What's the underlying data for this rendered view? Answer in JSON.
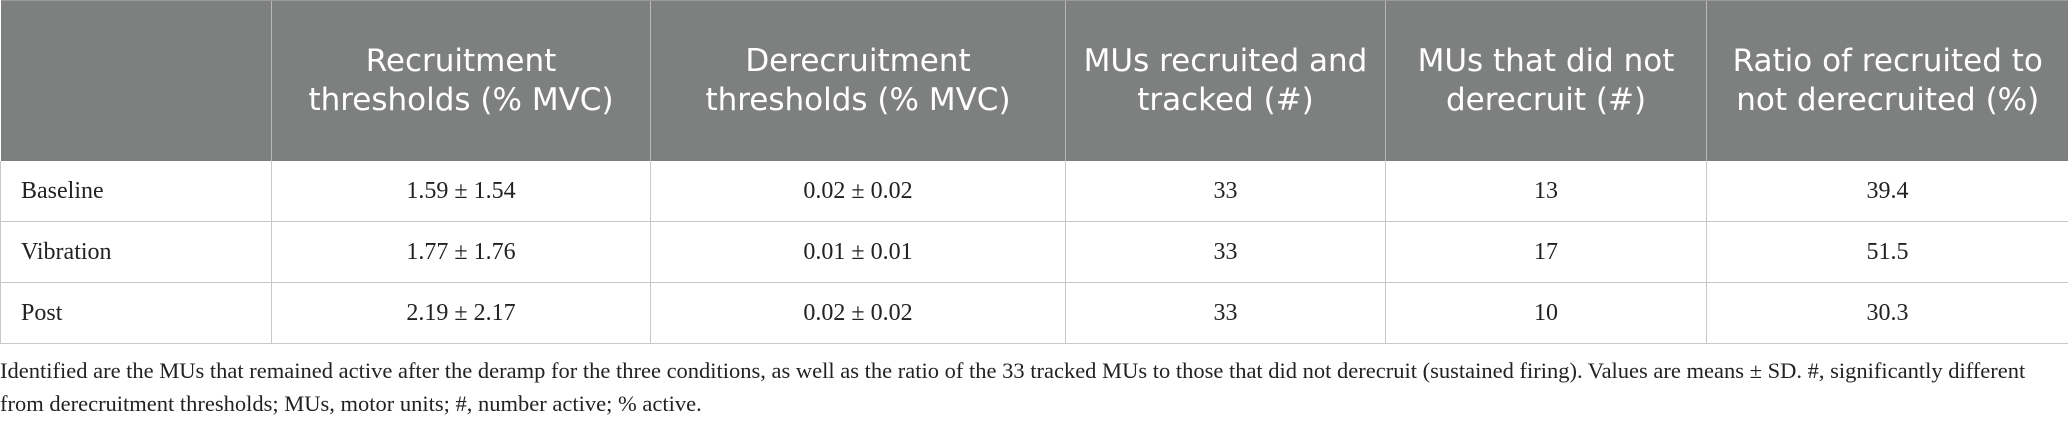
{
  "table": {
    "headers": [
      "",
      "Recruitment thresholds (% MVC)",
      "Derecruitment thresholds (% MVC)",
      "MUs recruited and tracked (#)",
      "MUs that did not derecruit (#)",
      "Ratio of recruited to not derecruited (%)"
    ],
    "rows": [
      [
        "Baseline",
        "1.59 ± 1.54",
        "0.02 ± 0.02",
        "33",
        "13",
        "39.4"
      ],
      [
        "Vibration",
        "1.77 ± 1.76",
        "0.01 ± 0.01",
        "33",
        "17",
        "51.5"
      ],
      [
        "Post",
        "2.19 ± 2.17",
        "0.02 ± 0.02",
        "33",
        "10",
        "30.3"
      ]
    ]
  },
  "footnote": "Identified are the MUs that remained active after the deramp for the three conditions, as well as the ratio of the 33 tracked MUs to those that did not derecruit (sustained firing). Values are means ± SD. #, significantly different from derecruitment thresholds; MUs, motor units; #, number active; % active.",
  "colors": {
    "header_bg": "#7e807f",
    "header_text": "#ffffff",
    "border": "#c8c8c8"
  }
}
